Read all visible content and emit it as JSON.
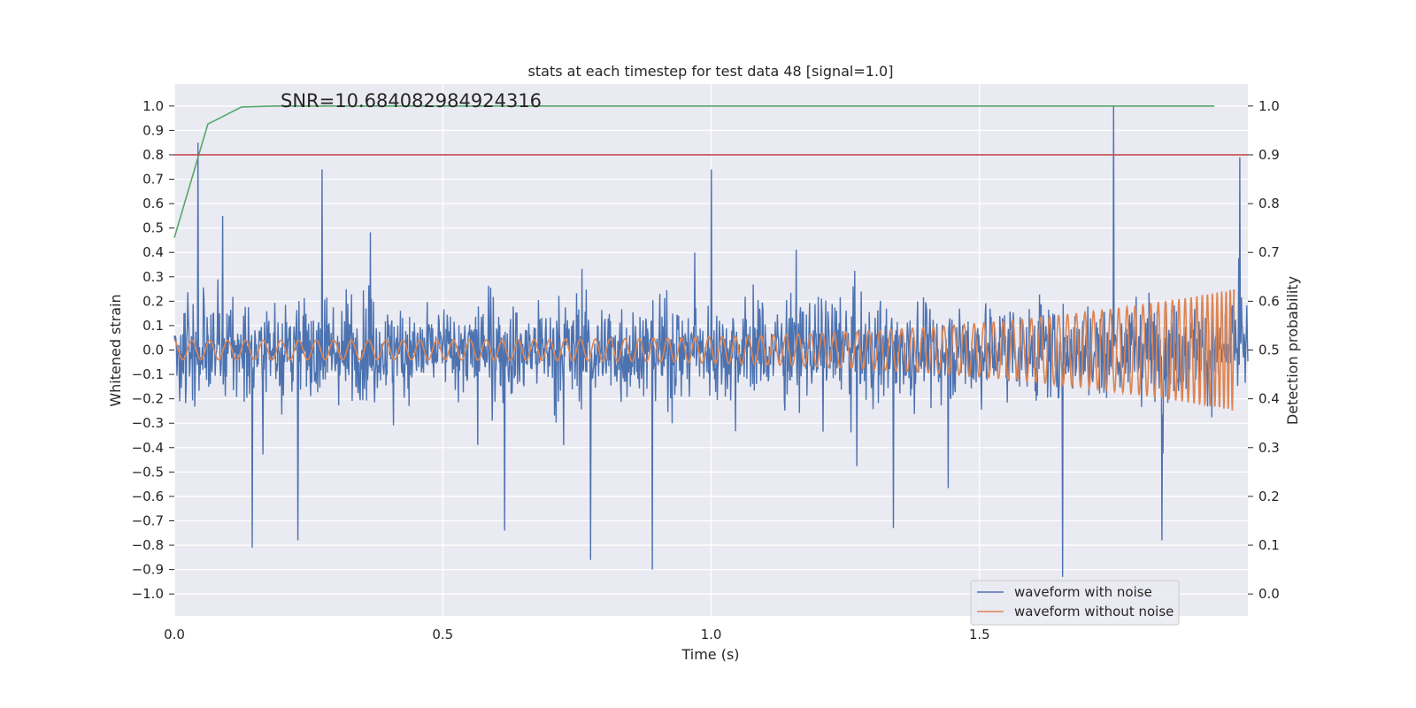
{
  "chart_data": {
    "type": "line",
    "title": "stats at each timestep for test data 48 [signal=1.0]",
    "xlabel": "Time (s)",
    "ylabel": "Whitened strain",
    "y2label": "Detection probability",
    "annotation": "SNR=10.684082984924316",
    "xlim": [
      0.0,
      2.0
    ],
    "ylim": [
      -1.09,
      1.09
    ],
    "y2lim": [
      -0.045,
      1.045
    ],
    "grid": true,
    "legend_position": "lower-right",
    "xticks": [
      0.0,
      0.5,
      1.0,
      1.5
    ],
    "xtick_labels": [
      "0.0",
      "0.5",
      "1.0",
      "1.5"
    ],
    "yticks": [
      1.0,
      0.9,
      0.8,
      0.7,
      0.6,
      0.5,
      0.4,
      0.3,
      0.2,
      0.1,
      0.0,
      -0.1,
      -0.2,
      -0.3,
      -0.4,
      -0.5,
      -0.6,
      -0.7,
      -0.8,
      -0.9,
      -1.0
    ],
    "ytick_labels": [
      "1.0",
      "0.9",
      "0.8",
      "0.7",
      "0.6",
      "0.5",
      "0.4",
      "0.3",
      "0.2",
      "0.1",
      "0.0",
      "−0.1",
      "−0.2",
      "−0.3",
      "−0.4",
      "−0.5",
      "−0.6",
      "−0.7",
      "−0.8",
      "−0.9",
      "−1.0"
    ],
    "y2ticks": [
      1.0,
      0.9,
      0.8,
      0.7,
      0.6,
      0.5,
      0.4,
      0.3,
      0.2,
      0.1,
      0.0
    ],
    "y2tick_labels": [
      "1.0",
      "0.9",
      "0.8",
      "0.7",
      "0.6",
      "0.5",
      "0.4",
      "0.3",
      "0.2",
      "0.1",
      "0.0"
    ],
    "series": [
      {
        "name": "waveform with noise",
        "color": "#4c72b0",
        "axis": "left",
        "kind": "noise",
        "n_points": 2000,
        "x_range": [
          0.0,
          2.0
        ],
        "amplitude": 0.25,
        "spikes": [
          {
            "x": 0.044,
            "y": 0.85
          },
          {
            "x": 0.145,
            "y": -0.81
          },
          {
            "x": 0.23,
            "y": -0.78
          },
          {
            "x": 0.275,
            "y": 0.74
          },
          {
            "x": 0.615,
            "y": -0.74
          },
          {
            "x": 0.775,
            "y": -0.86
          },
          {
            "x": 0.89,
            "y": -0.9
          },
          {
            "x": 1.0,
            "y": 0.74
          },
          {
            "x": 1.34,
            "y": -0.73
          },
          {
            "x": 1.655,
            "y": -0.93
          },
          {
            "x": 1.75,
            "y": 1.0
          },
          {
            "x": 1.84,
            "y": -0.78
          },
          {
            "x": 1.985,
            "y": 0.79
          }
        ]
      },
      {
        "name": "waveform without noise",
        "color": "#dd8452",
        "axis": "left",
        "kind": "chirp",
        "x_range": [
          0.0,
          1.975
        ],
        "amplitude_start": 0.04,
        "amplitude_end": 0.25
      },
      {
        "name": "",
        "color": "#55a868",
        "axis": "right",
        "kind": "line",
        "x": [
          0.0,
          0.0625,
          0.125,
          0.1875,
          0.25,
          0.5,
          1.0,
          1.5,
          1.9375
        ],
        "y": [
          0.73,
          0.963,
          0.998,
          1.0,
          1.0,
          1.0,
          1.0,
          1.0,
          1.0
        ]
      },
      {
        "name": "",
        "color": "#c44e52",
        "axis": "left",
        "kind": "hline",
        "y": 0.8
      }
    ]
  }
}
